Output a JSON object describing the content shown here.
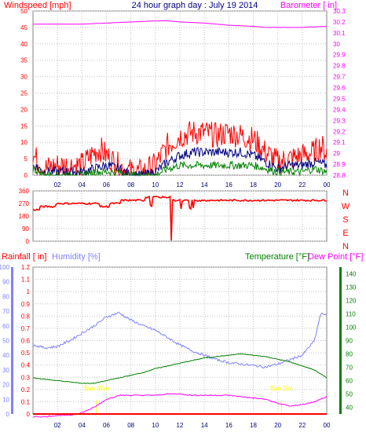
{
  "chart_data": [
    {
      "type": "line",
      "title": "24 hour graph day : July 19 2014",
      "left_axis_label": "Windspeed [mph]",
      "right_axis_label": "Barometer [ in]",
      "x_ticks": [
        "02",
        "04",
        "06",
        "08",
        "10",
        "12",
        "14",
        "16",
        "18",
        "20",
        "22",
        "00"
      ],
      "left_ylim": [
        0,
        50
      ],
      "left_ticks": [
        "0",
        "5",
        "10",
        "15",
        "20",
        "25",
        "30",
        "35",
        "40",
        "45",
        "50"
      ],
      "right_ylim": [
        28.8,
        30.3
      ],
      "right_ticks": [
        "28.8",
        "28.9",
        "29",
        "29.1",
        "29.2",
        "29.3",
        "29.4",
        "29.5",
        "29.6",
        "29.7",
        "29.8",
        "29.9",
        "30",
        "30.1",
        "30.2",
        "30.3"
      ],
      "colors": {
        "gust": "#ff0000",
        "average": "#000080",
        "speed": "#008000",
        "barometer": "#ff00ff"
      },
      "series": [
        {
          "key": "barometer",
          "x": [
            0,
            2,
            4,
            6,
            8,
            10,
            11,
            12,
            14,
            16,
            18,
            19,
            20,
            22,
            24
          ],
          "values": [
            30.18,
            30.18,
            30.18,
            30.19,
            30.2,
            30.21,
            30.21,
            30.2,
            30.19,
            30.17,
            30.16,
            30.15,
            30.15,
            30.15,
            30.16
          ]
        },
        {
          "key": "gust",
          "x": [
            0,
            0.5,
            1,
            2,
            3,
            4,
            4.5,
            5,
            5.5,
            6,
            7,
            8,
            9,
            10,
            11,
            12,
            13,
            14,
            15,
            16,
            17,
            18,
            19,
            20,
            21,
            22,
            23,
            23.5,
            24
          ],
          "values": [
            6,
            4,
            2,
            3,
            3,
            3,
            5,
            7,
            8,
            6,
            3,
            1,
            1,
            3,
            9,
            12,
            13,
            13,
            12,
            13,
            12,
            11,
            7,
            4,
            5,
            6,
            7,
            9,
            7
          ]
        },
        {
          "key": "average",
          "x": [
            0,
            1,
            2,
            3,
            4,
            5,
            6,
            7,
            8,
            9,
            10,
            11,
            12,
            13,
            14,
            15,
            16,
            17,
            18,
            19,
            20,
            21,
            22,
            23,
            24
          ],
          "values": [
            3,
            1,
            1,
            1,
            1,
            2,
            3,
            2,
            0,
            0,
            1,
            4,
            6,
            7,
            7,
            7,
            7,
            7,
            6,
            4,
            2,
            3,
            3,
            4,
            3
          ]
        },
        {
          "key": "speed",
          "x": [
            0,
            1,
            2,
            3,
            4,
            5,
            6,
            7,
            8,
            9,
            10,
            11,
            12,
            13,
            14,
            15,
            16,
            17,
            18,
            19,
            20,
            21,
            22,
            23,
            24
          ],
          "values": [
            2,
            0,
            0,
            0,
            0,
            1,
            1,
            1,
            0,
            0,
            0,
            2,
            3,
            3,
            3,
            3,
            3,
            3,
            3,
            2,
            1,
            1,
            1,
            2,
            1
          ]
        }
      ]
    },
    {
      "type": "line",
      "right_labels": [
        "N",
        "W",
        "S",
        "E",
        "N"
      ],
      "left_ticks": [
        "0",
        "90",
        "180",
        "270",
        "360"
      ],
      "ylim": [
        0,
        360
      ],
      "x_ticks": [
        "02",
        "04",
        "06",
        "08",
        "10",
        "12",
        "14",
        "16",
        "18",
        "20",
        "22",
        "00"
      ],
      "color": "#ff0000",
      "series": [
        {
          "key": "wind_direction",
          "x": [
            0,
            0.8,
            1.5,
            2.5,
            3,
            4,
            5,
            6,
            7,
            8,
            9,
            10,
            11,
            12,
            14,
            16,
            18,
            19,
            20,
            22,
            23,
            24
          ],
          "values": [
            225,
            240,
            255,
            265,
            260,
            275,
            265,
            250,
            280,
            290,
            300,
            320,
            310,
            290,
            285,
            285,
            300,
            300,
            290,
            285,
            295,
            300
          ]
        }
      ]
    },
    {
      "type": "line",
      "left_axis_label": "Rainfall [ in]",
      "humidity_label": "Humidity [%]",
      "temperature_label": "Temperature [°F]",
      "dewpoint_label": "Dew Point [°F]",
      "rain_ticks": [
        "0",
        "0.1",
        "0.2",
        "0.3",
        "0.4",
        "0.5",
        "0.6",
        "0.7",
        "0.8",
        "0.9",
        "1",
        "1.1",
        "1.2"
      ],
      "humidity_ticks": [
        "0",
        "10",
        "20",
        "30",
        "40",
        "50",
        "60",
        "70",
        "80",
        "90",
        "100"
      ],
      "temp_ticks": [
        "40",
        "50",
        "60",
        "70",
        "80",
        "90",
        "100",
        "110",
        "120",
        "130",
        "140"
      ],
      "x_ticks": [
        "02",
        "04",
        "06",
        "08",
        "10",
        "12",
        "14",
        "16",
        "18",
        "20",
        "22",
        "00"
      ],
      "annotations": [
        "Sun Rise",
        "Sun Set"
      ],
      "colors": {
        "rain": "#ff0000",
        "humidity": "#8080ff",
        "temperature": "#008000",
        "dewpoint": "#ff00ff",
        "sun": "#ffff00"
      },
      "series": [
        {
          "key": "humidity",
          "x": [
            0,
            1,
            2,
            3,
            4,
            5,
            6,
            7,
            8,
            9,
            10,
            11,
            12,
            13,
            14,
            15,
            16,
            17,
            18,
            19,
            20,
            21,
            22,
            23,
            23.5,
            24
          ],
          "values": [
            47,
            45,
            46,
            50,
            55,
            60,
            66,
            69,
            64,
            60,
            57,
            52,
            47,
            43,
            40,
            37,
            35,
            34,
            33,
            32,
            34,
            37,
            40,
            50,
            68,
            68
          ]
        },
        {
          "key": "temperature",
          "x": [
            0,
            1,
            2,
            3,
            4,
            5,
            6,
            7,
            8,
            9,
            10,
            11,
            12,
            13,
            14,
            15,
            16,
            17,
            18,
            19,
            20,
            21,
            22,
            23,
            24
          ],
          "values": [
            62,
            61,
            60,
            59,
            58,
            58,
            60,
            62,
            64,
            66,
            69,
            71,
            73,
            75,
            77,
            78,
            79,
            80,
            79,
            78,
            76,
            74,
            71,
            68,
            62
          ]
        },
        {
          "key": "dewpoint",
          "x": [
            0,
            1,
            2,
            3,
            4,
            5,
            6,
            7,
            8,
            9,
            10,
            11,
            12,
            13,
            14,
            15,
            16,
            17,
            18,
            19,
            20,
            21,
            22,
            23,
            24
          ],
          "values": [
            33,
            33,
            34,
            34,
            36,
            40,
            46,
            49,
            49,
            49,
            49,
            50,
            50,
            49,
            49,
            49,
            49,
            48,
            47,
            46,
            43,
            41,
            42,
            44,
            48
          ]
        },
        {
          "key": "rain",
          "x": [
            0,
            24
          ],
          "values": [
            0,
            0
          ]
        }
      ]
    }
  ]
}
